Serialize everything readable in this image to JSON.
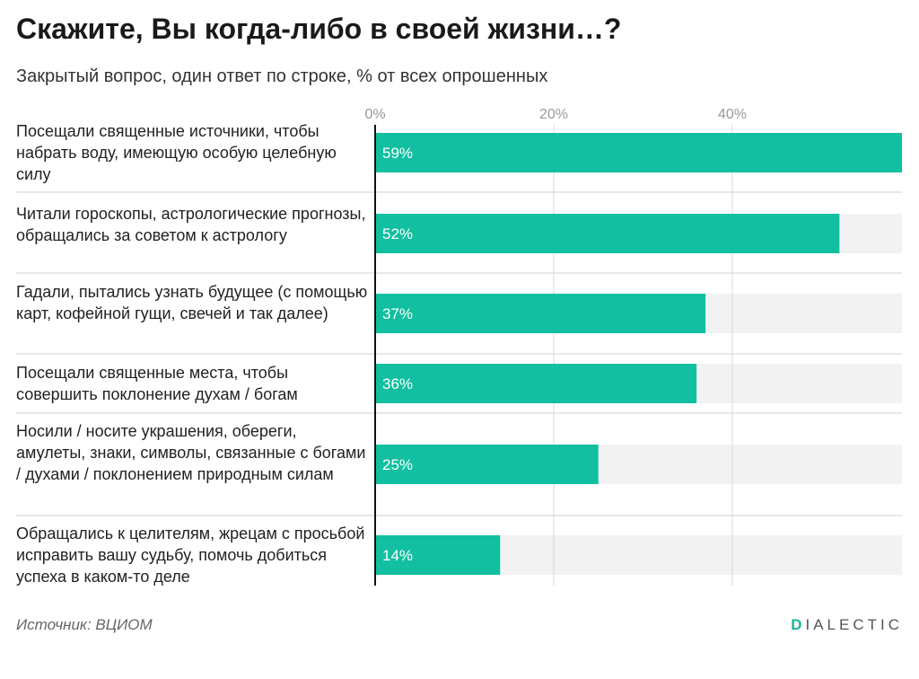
{
  "header": {
    "title": "Скажите, Вы когда-либо в своей жизни…?",
    "subtitle": "Закрытый вопрос, один ответ по строке, % от всех опрошенных"
  },
  "footer": {
    "source": "Источник: ВЦИОМ",
    "brand_first": "D",
    "brand_rest": "IALECTIC"
  },
  "colors": {
    "bar": "#12bfa0",
    "track": "#f2f2f2",
    "grid": "#d9d9d9",
    "separator": "#d0d0d0",
    "axis": "#111111",
    "tick_label": "#999999",
    "value_label": "#ffffff"
  },
  "chart_data": {
    "type": "bar",
    "orientation": "horizontal",
    "categories": [
      "Посещали священные источники, чтобы набрать воду, имеющую особую целебную силу",
      "Читали гороскопы, астрологические прогнозы, обращались за советом к астрологу",
      "Гадали, пытались узнать будущее (с помощью карт, кофейной гущи, свечей и так далее)",
      "Посещали священные места, чтобы совершить поклонение духам / богам",
      "Носили / носите украшения, обереги, амулеты, знаки, символы, связанные с богами / духами / поклонением природным силам",
      "Обращались к целителям, жрецам с просьбой исправить вашу судьбу, помочь добиться успеха в каком-то деле"
    ],
    "values": [
      59,
      52,
      37,
      36,
      25,
      14
    ],
    "value_labels": [
      "59%",
      "52%",
      "37%",
      "36%",
      "25%",
      "14%"
    ],
    "xlim": [
      0,
      59
    ],
    "xticks": [
      0,
      20,
      40
    ],
    "xtick_labels": [
      "0%",
      "20%",
      "40%"
    ],
    "title": "Скажите, Вы когда-либо в своей жизни…?",
    "xlabel": "",
    "ylabel": "",
    "grid": true
  }
}
